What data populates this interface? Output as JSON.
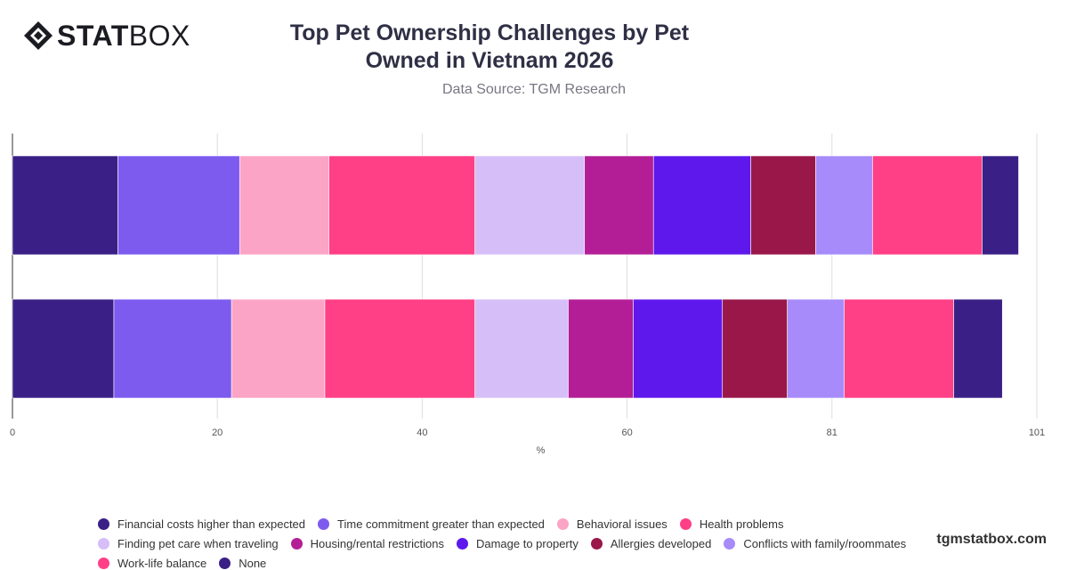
{
  "brand": {
    "logo_bold": "STAT",
    "logo_light": "BOX"
  },
  "header": {
    "title": "Top Pet Ownership Challenges by Pet Owned in Vietnam 2026",
    "subtitle": "Data Source: TGM Research"
  },
  "watermark": "tgmstatbox.com",
  "chart_data": {
    "type": "bar",
    "orientation": "horizontal",
    "stacked": true,
    "title": "Top Pet Ownership Challenges by Pet Owned in Vietnam 2026",
    "subtitle": "Data Source: TGM Research",
    "xlabel": "%",
    "ylabel": "",
    "xlim": [
      0,
      101
    ],
    "x_ticks": [
      "0",
      "20",
      "40",
      "60",
      "81",
      "101"
    ],
    "categories": [
      "",
      ""
    ],
    "grid": true,
    "legend_position": "bottom",
    "series": [
      {
        "name": "Financial costs higher than expected",
        "color": "#3a1f86",
        "values": [
          10.4,
          10.0
        ]
      },
      {
        "name": "Time commitment greater than expected",
        "color": "#7d5bef",
        "values": [
          12.0,
          11.6
        ]
      },
      {
        "name": "Behavioral issues",
        "color": "#fba4c6",
        "values": [
          8.8,
          9.2
        ]
      },
      {
        "name": "Health problems",
        "color": "#ff3f86",
        "values": [
          14.4,
          14.8
        ]
      },
      {
        "name": "Finding pet care when traveling",
        "color": "#d6bef8",
        "values": [
          10.8,
          9.2
        ]
      },
      {
        "name": "Housing/rental restrictions",
        "color": "#b31e96",
        "values": [
          6.8,
          6.4
        ]
      },
      {
        "name": "Damage to property",
        "color": "#5f18ec",
        "values": [
          9.6,
          8.8
        ]
      },
      {
        "name": "Allergies developed",
        "color": "#9a174a",
        "values": [
          6.4,
          6.4
        ]
      },
      {
        "name": "Conflicts with family/roommates",
        "color": "#a78bfa",
        "values": [
          5.6,
          5.6
        ]
      },
      {
        "name": "Work-life balance",
        "color": "#ff3f86",
        "values": [
          10.8,
          10.8
        ]
      },
      {
        "name": "None",
        "color": "#3a1f86",
        "values": [
          3.6,
          4.8
        ]
      }
    ]
  }
}
